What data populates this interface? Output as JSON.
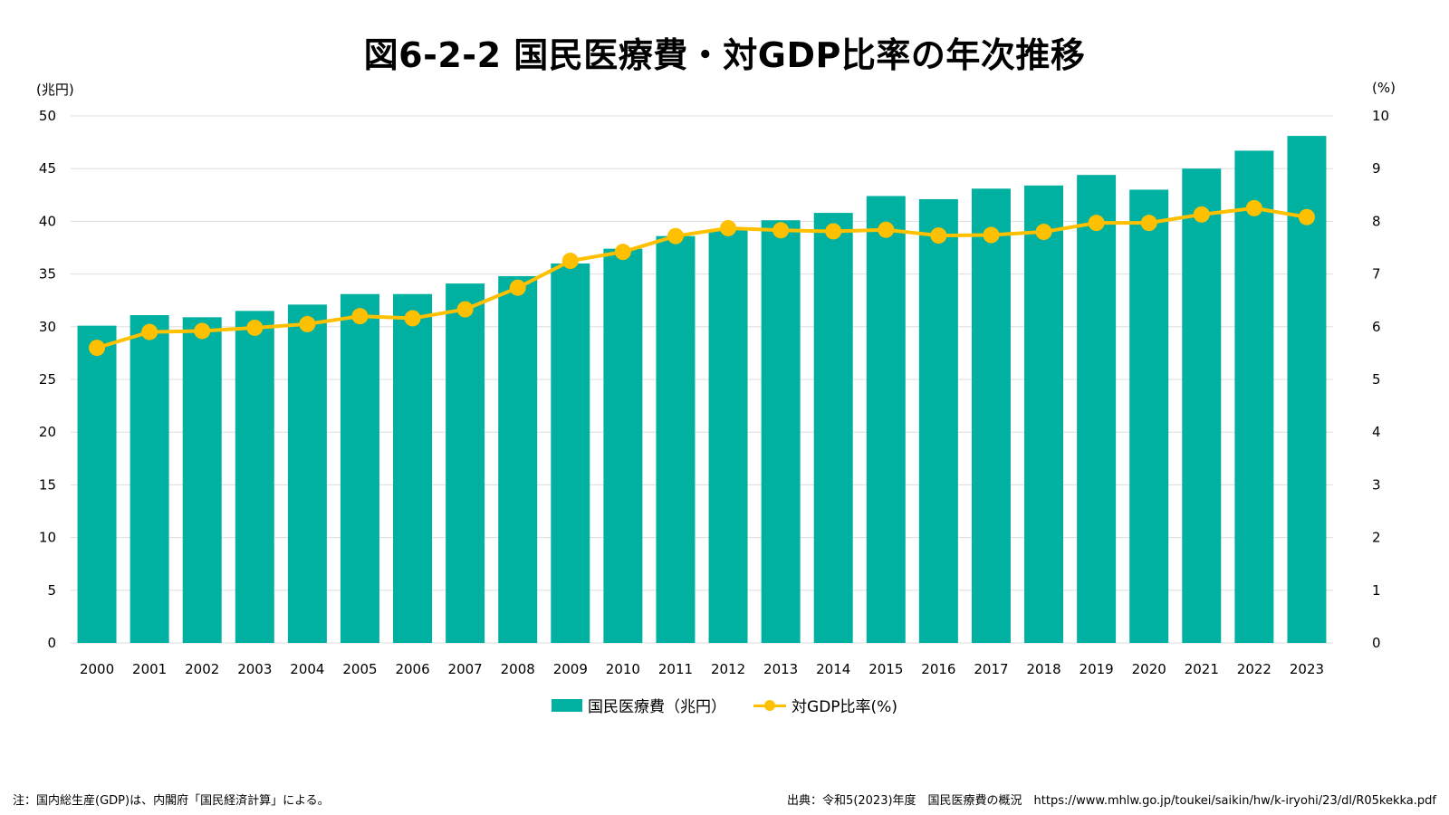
{
  "title": "図6-2-2 国民医療費・対GDP比率の年次推移",
  "left_unit": "(兆円)",
  "right_unit": "(%)",
  "legend": {
    "bar_label": "国民医療費（兆円）",
    "line_label": "対GDP比率(%)"
  },
  "colors": {
    "bar": "#00b0a0",
    "line": "#ffc000",
    "grid": "#dddddd"
  },
  "footnote_left": "注：国内総生産(GDP)は、内閣府「国民経済計算」による。",
  "footnote_right": "出典：令和5(2023)年度　国民医療費の概況　https://www.mhlw.go.jp/toukei/saikin/hw/k-iryohi/23/dl/R05kekka.pdf",
  "chart_data": {
    "type": "bar",
    "categories": [
      "2000",
      "2001",
      "2002",
      "2003",
      "2004",
      "2005",
      "2006",
      "2007",
      "2008",
      "2009",
      "2010",
      "2011",
      "2012",
      "2013",
      "2014",
      "2015",
      "2016",
      "2017",
      "2018",
      "2019",
      "2020",
      "2021",
      "2022",
      "2023"
    ],
    "series": [
      {
        "name": "国民医療費（兆円）",
        "type": "bar",
        "axis": "left",
        "values": [
          30.1,
          31.1,
          30.9,
          31.5,
          32.1,
          33.1,
          33.1,
          34.1,
          34.8,
          36.0,
          37.4,
          38.6,
          39.2,
          40.1,
          40.8,
          42.4,
          42.1,
          43.1,
          43.4,
          44.4,
          43.0,
          45.0,
          46.7,
          48.1
        ]
      },
      {
        "name": "対GDP比率(%)",
        "type": "line",
        "axis": "right",
        "values": [
          5.6,
          5.9,
          5.92,
          5.98,
          6.05,
          6.2,
          6.16,
          6.33,
          6.74,
          7.25,
          7.42,
          7.72,
          7.87,
          7.83,
          7.81,
          7.84,
          7.73,
          7.74,
          7.8,
          7.97,
          7.97,
          8.13,
          8.25,
          8.08
        ]
      }
    ],
    "ylim_left": [
      0,
      50
    ],
    "yticks_left": [
      0,
      5,
      10,
      15,
      20,
      25,
      30,
      35,
      40,
      45,
      50
    ],
    "ylim_right": [
      0,
      10
    ],
    "yticks_right": [
      0,
      1,
      2,
      3,
      4,
      5,
      6,
      7,
      8,
      9,
      10
    ],
    "grid": true,
    "legend_position": "bottom"
  }
}
